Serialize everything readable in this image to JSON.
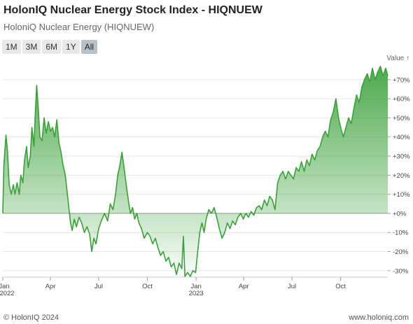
{
  "header": {
    "title": "HolonIQ Nuclear Energy Stock Index - HIQNUEW",
    "subtitle": "HoloniQ Nuclear Energy (HIQNUEW)"
  },
  "range_selector": {
    "buttons": [
      "1M",
      "3M",
      "6M",
      "1Y",
      "All"
    ],
    "active": "All"
  },
  "footer": {
    "copyright": "© HolonIQ 2024",
    "site": "www.holoniq.com"
  },
  "colors": {
    "line": "#3aa03a",
    "fill_top": "#3aa03a",
    "grid": "#e6e6e6",
    "zero_line": "#999999"
  },
  "chart_data": {
    "type": "area",
    "ylabel": "Value ↑",
    "y_axis_position": "right",
    "ylim": [
      -33,
      78
    ],
    "y_ticks": [
      -30,
      -20,
      -10,
      0,
      10,
      20,
      30,
      40,
      50,
      60,
      70
    ],
    "y_tick_labels": [
      "-30%",
      "-20%",
      "-10%",
      "+0%",
      "+10%",
      "+20%",
      "+30%",
      "+40%",
      "+50%",
      "+60%",
      "+70%"
    ],
    "x_tick_labels": [
      {
        "x": "2022-01-01",
        "label": "Jan",
        "sublabel": "2022"
      },
      {
        "x": "2022-04-01",
        "label": "Apr"
      },
      {
        "x": "2022-07-01",
        "label": "Jul"
      },
      {
        "x": "2022-10-01",
        "label": "Oct"
      },
      {
        "x": "2023-01-01",
        "label": "Jan",
        "sublabel": "2023"
      },
      {
        "x": "2023-04-01",
        "label": "Apr"
      },
      {
        "x": "2023-07-01",
        "label": "Jul"
      },
      {
        "x": "2023-10-01",
        "label": "Oct"
      }
    ],
    "xlim": [
      "2022-01-01",
      "2023-12-29"
    ],
    "grid": true,
    "series": [
      {
        "points": [
          [
            "2022-01-01",
            0
          ],
          [
            "2022-01-03",
            25
          ],
          [
            "2022-01-07",
            41
          ],
          [
            "2022-01-10",
            32
          ],
          [
            "2022-01-13",
            15
          ],
          [
            "2022-01-17",
            10
          ],
          [
            "2022-01-21",
            15
          ],
          [
            "2022-01-24",
            10
          ],
          [
            "2022-01-28",
            16
          ],
          [
            "2022-02-01",
            10
          ],
          [
            "2022-02-04",
            20
          ],
          [
            "2022-02-08",
            16
          ],
          [
            "2022-02-11",
            28
          ],
          [
            "2022-02-15",
            35
          ],
          [
            "2022-02-18",
            24
          ],
          [
            "2022-02-22",
            30
          ],
          [
            "2022-02-25",
            45
          ],
          [
            "2022-03-01",
            35
          ],
          [
            "2022-03-03",
            50
          ],
          [
            "2022-03-06",
            67
          ],
          [
            "2022-03-09",
            55
          ],
          [
            "2022-03-12",
            40
          ],
          [
            "2022-03-16",
            38
          ],
          [
            "2022-03-20",
            50
          ],
          [
            "2022-03-24",
            42
          ],
          [
            "2022-03-28",
            48
          ],
          [
            "2022-04-01",
            43
          ],
          [
            "2022-04-05",
            45
          ],
          [
            "2022-04-09",
            40
          ],
          [
            "2022-04-13",
            49
          ],
          [
            "2022-04-17",
            37
          ],
          [
            "2022-04-21",
            32
          ],
          [
            "2022-04-25",
            25
          ],
          [
            "2022-04-29",
            20
          ],
          [
            "2022-05-03",
            10
          ],
          [
            "2022-05-06",
            2
          ],
          [
            "2022-05-09",
            -5
          ],
          [
            "2022-05-12",
            -9
          ],
          [
            "2022-05-16",
            -3
          ],
          [
            "2022-05-20",
            -7
          ],
          [
            "2022-05-25",
            -2
          ],
          [
            "2022-05-30",
            -5
          ],
          [
            "2022-06-04",
            -10
          ],
          [
            "2022-06-09",
            -7
          ],
          [
            "2022-06-14",
            -11
          ],
          [
            "2022-06-18",
            -20
          ],
          [
            "2022-06-22",
            -13
          ],
          [
            "2022-06-26",
            -16
          ],
          [
            "2022-07-01",
            -8
          ],
          [
            "2022-07-06",
            -4
          ],
          [
            "2022-07-12",
            0
          ],
          [
            "2022-07-18",
            -4
          ],
          [
            "2022-07-23",
            5
          ],
          [
            "2022-07-28",
            2
          ],
          [
            "2022-08-02",
            10
          ],
          [
            "2022-08-06",
            20
          ],
          [
            "2022-08-10",
            25
          ],
          [
            "2022-08-14",
            32
          ],
          [
            "2022-08-18",
            24
          ],
          [
            "2022-08-22",
            15
          ],
          [
            "2022-08-26",
            7
          ],
          [
            "2022-08-30",
            0
          ],
          [
            "2022-09-03",
            3
          ],
          [
            "2022-09-07",
            -3
          ],
          [
            "2022-09-11",
            0
          ],
          [
            "2022-09-15",
            -5
          ],
          [
            "2022-09-20",
            -8
          ],
          [
            "2022-09-25",
            -13
          ],
          [
            "2022-10-01",
            -10
          ],
          [
            "2022-10-06",
            -12
          ],
          [
            "2022-10-11",
            -16
          ],
          [
            "2022-10-16",
            -13
          ],
          [
            "2022-10-21",
            -18
          ],
          [
            "2022-10-26",
            -22
          ],
          [
            "2022-10-31",
            -20
          ],
          [
            "2022-11-05",
            -25
          ],
          [
            "2022-11-10",
            -23
          ],
          [
            "2022-11-15",
            -28
          ],
          [
            "2022-11-20",
            -26
          ],
          [
            "2022-11-25",
            -32
          ],
          [
            "2022-11-30",
            -26
          ],
          [
            "2022-12-05",
            -29
          ],
          [
            "2022-12-08",
            -12
          ],
          [
            "2022-12-11",
            -33
          ],
          [
            "2022-12-16",
            -31
          ],
          [
            "2022-12-21",
            -33
          ],
          [
            "2022-12-26",
            -30
          ],
          [
            "2022-12-31",
            -31
          ],
          [
            "2023-01-04",
            -20
          ],
          [
            "2023-01-08",
            -10
          ],
          [
            "2023-01-12",
            -5
          ],
          [
            "2023-01-16",
            -10
          ],
          [
            "2023-01-20",
            -3
          ],
          [
            "2023-01-25",
            2
          ],
          [
            "2023-01-30",
            0
          ],
          [
            "2023-02-04",
            3
          ],
          [
            "2023-02-09",
            -2
          ],
          [
            "2023-02-14",
            -8
          ],
          [
            "2023-02-19",
            -13
          ],
          [
            "2023-02-24",
            -10
          ],
          [
            "2023-03-01",
            -5
          ],
          [
            "2023-03-06",
            -8
          ],
          [
            "2023-03-11",
            -4
          ],
          [
            "2023-03-16",
            -6
          ],
          [
            "2023-03-21",
            -2
          ],
          [
            "2023-03-26",
            0
          ],
          [
            "2023-03-31",
            -3
          ],
          [
            "2023-04-05",
            0
          ],
          [
            "2023-04-10",
            -2
          ],
          [
            "2023-04-15",
            1
          ],
          [
            "2023-04-20",
            -1
          ],
          [
            "2023-04-25",
            3
          ],
          [
            "2023-04-30",
            4
          ],
          [
            "2023-05-05",
            2
          ],
          [
            "2023-05-10",
            7
          ],
          [
            "2023-05-15",
            4
          ],
          [
            "2023-05-20",
            9
          ],
          [
            "2023-05-25",
            7
          ],
          [
            "2023-05-30",
            2
          ],
          [
            "2023-06-04",
            16
          ],
          [
            "2023-06-09",
            20
          ],
          [
            "2023-06-14",
            22
          ],
          [
            "2023-06-19",
            18
          ],
          [
            "2023-06-24",
            22
          ],
          [
            "2023-06-29",
            20
          ],
          [
            "2023-07-04",
            18
          ],
          [
            "2023-07-09",
            24
          ],
          [
            "2023-07-14",
            22
          ],
          [
            "2023-07-19",
            27
          ],
          [
            "2023-07-24",
            22
          ],
          [
            "2023-07-29",
            28
          ],
          [
            "2023-08-03",
            25
          ],
          [
            "2023-08-08",
            31
          ],
          [
            "2023-08-13",
            28
          ],
          [
            "2023-08-18",
            33
          ],
          [
            "2023-08-23",
            35
          ],
          [
            "2023-08-28",
            40
          ],
          [
            "2023-09-02",
            43
          ],
          [
            "2023-09-07",
            40
          ],
          [
            "2023-09-12",
            49
          ],
          [
            "2023-09-17",
            53
          ],
          [
            "2023-09-22",
            60
          ],
          [
            "2023-09-27",
            50
          ],
          [
            "2023-10-02",
            44
          ],
          [
            "2023-10-06",
            40
          ],
          [
            "2023-10-11",
            45
          ],
          [
            "2023-10-16",
            50
          ],
          [
            "2023-10-21",
            47
          ],
          [
            "2023-10-26",
            55
          ],
          [
            "2023-10-31",
            62
          ],
          [
            "2023-11-05",
            58
          ],
          [
            "2023-11-10",
            66
          ],
          [
            "2023-11-15",
            70
          ],
          [
            "2023-11-20",
            73
          ],
          [
            "2023-11-25",
            69
          ],
          [
            "2023-11-30",
            76
          ],
          [
            "2023-12-05",
            70
          ],
          [
            "2023-12-10",
            74
          ],
          [
            "2023-12-15",
            77
          ],
          [
            "2023-12-20",
            72
          ],
          [
            "2023-12-25",
            76
          ],
          [
            "2023-12-29",
            72
          ]
        ]
      }
    ]
  }
}
